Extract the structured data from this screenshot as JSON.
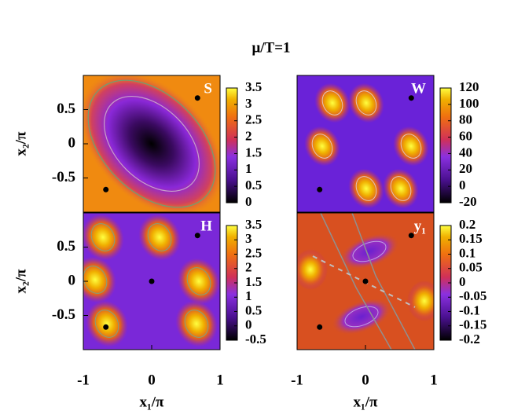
{
  "title": "μ/T=1",
  "chart_data": [
    {
      "type": "heatmap",
      "label": "S",
      "xlim": [
        -1,
        1
      ],
      "ylim": [
        -1,
        1
      ],
      "yticks": [
        -0.5,
        0,
        0.5
      ],
      "ylabel": "x₂/π",
      "colorbar": {
        "lim": [
          0,
          3.5
        ],
        "ticks": [
          0,
          0.5,
          1,
          1.5,
          2,
          2.5,
          3,
          3.5
        ]
      },
      "points": {
        "x": [
          0.67,
          -0.67
        ],
        "y": [
          0.67,
          -0.67
        ]
      }
    },
    {
      "type": "heatmap",
      "label": "W",
      "xlim": [
        -1,
        1
      ],
      "ylim": [
        -1,
        1
      ],
      "colorbar": {
        "lim": [
          -20,
          120
        ],
        "ticks": [
          -20,
          0,
          20,
          40,
          60,
          80,
          100,
          120
        ]
      },
      "points": {
        "x": [
          0.67,
          -0.67
        ],
        "y": [
          0.67,
          -0.67
        ]
      }
    },
    {
      "type": "heatmap",
      "label": "H",
      "xlim": [
        -1,
        1
      ],
      "ylim": [
        -1,
        1
      ],
      "xticks": [
        -1,
        0,
        1
      ],
      "yticks": [
        -0.5,
        0,
        0.5
      ],
      "xlabel": "x₁/π",
      "ylabel": "x₂/π",
      "colorbar": {
        "lim": [
          -0.5,
          3.5
        ],
        "ticks": [
          -0.5,
          0,
          0.5,
          1,
          1.5,
          2,
          2.5,
          3,
          3.5
        ]
      },
      "points": {
        "x": [
          0.67,
          0,
          -0.67
        ],
        "y": [
          0.67,
          0,
          -0.67
        ]
      }
    },
    {
      "type": "heatmap",
      "label": "y₁",
      "xlim": [
        -1,
        1
      ],
      "ylim": [
        -1,
        1
      ],
      "xticks": [
        -1,
        0,
        1
      ],
      "xlabel": "x₁/π",
      "colorbar": {
        "lim": [
          -0.2,
          0.2
        ],
        "ticks": [
          -0.2,
          -0.15,
          -0.1,
          -0.05,
          0,
          0.05,
          0.1,
          0.15,
          0.2
        ]
      },
      "points": {
        "x": [
          0.67,
          0,
          -0.67
        ],
        "y": [
          0.67,
          0,
          -0.67
        ]
      }
    }
  ]
}
